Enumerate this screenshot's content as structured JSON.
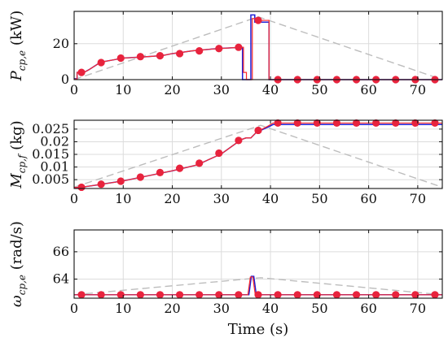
{
  "colors": {
    "background": "#ffffff",
    "grid": "#dcdcdc",
    "blue": "#1f1fd6",
    "red": "#ff2a2a",
    "dot": "#e8233d",
    "dashed": "#bdbdbd",
    "axis": "#111111"
  },
  "chart_data": [
    {
      "type": "line",
      "ylabel_main": "P",
      "ylabel_sub": "cp,e",
      "ylabel_unit": "(kW)",
      "xlim": [
        0,
        75
      ],
      "ylim": [
        0,
        38
      ],
      "xticks": [
        0,
        10,
        20,
        30,
        40,
        50,
        60,
        70
      ],
      "yticks": [
        0,
        20
      ],
      "grid": true,
      "series": [
        {
          "style": "dashed-gray",
          "points": [
            [
              0,
              0
            ],
            [
              37.5,
              35
            ],
            [
              75,
              0
            ]
          ]
        },
        {
          "style": "blue",
          "points": [
            [
              0,
              0.5
            ],
            [
              0.6,
              0.5
            ],
            [
              0.6,
              4
            ],
            [
              2,
              4
            ],
            [
              3,
              5.5
            ],
            [
              5,
              9
            ],
            [
              6,
              10
            ],
            [
              8,
              11
            ],
            [
              10,
              12
            ],
            [
              12,
              12.3
            ],
            [
              14,
              12.6
            ],
            [
              16,
              13
            ],
            [
              18,
              13.4
            ],
            [
              20,
              14.5
            ],
            [
              22,
              15.2
            ],
            [
              24,
              16
            ],
            [
              26,
              16.5
            ],
            [
              28,
              17
            ],
            [
              30,
              17.4
            ],
            [
              32,
              17.7
            ],
            [
              34,
              18
            ],
            [
              34.3,
              18
            ],
            [
              34.3,
              0
            ],
            [
              36,
              0
            ],
            [
              36,
              36
            ],
            [
              36.8,
              36
            ],
            [
              36.8,
              32
            ],
            [
              39.7,
              32
            ],
            [
              39.7,
              0
            ],
            [
              75,
              0
            ]
          ]
        },
        {
          "style": "red",
          "points": [
            [
              0,
              0.3
            ],
            [
              0.6,
              0.3
            ],
            [
              0.6,
              4
            ],
            [
              2,
              4
            ],
            [
              3,
              5.5
            ],
            [
              5,
              9
            ],
            [
              6,
              10
            ],
            [
              8,
              11
            ],
            [
              10,
              12
            ],
            [
              12,
              12.3
            ],
            [
              14,
              12.6
            ],
            [
              16,
              13
            ],
            [
              18,
              13.4
            ],
            [
              20,
              14.5
            ],
            [
              22,
              15.2
            ],
            [
              24,
              16
            ],
            [
              26,
              16.5
            ],
            [
              28,
              17
            ],
            [
              30,
              17.4
            ],
            [
              32,
              17.7
            ],
            [
              34,
              18
            ],
            [
              34.5,
              18
            ],
            [
              34.5,
              4
            ],
            [
              35.1,
              4
            ],
            [
              35.1,
              0
            ],
            [
              36.3,
              0
            ],
            [
              36.3,
              34
            ],
            [
              37,
              34
            ],
            [
              37,
              33
            ],
            [
              39.7,
              33
            ],
            [
              39.7,
              0
            ],
            [
              75,
              0
            ]
          ]
        },
        {
          "style": "dots",
          "points": [
            [
              1.5,
              4
            ],
            [
              5.5,
              9.5
            ],
            [
              9.5,
              12
            ],
            [
              13.5,
              12.8
            ],
            [
              17.5,
              13.3
            ],
            [
              21.5,
              14.5
            ],
            [
              25.5,
              16
            ],
            [
              29.5,
              17.3
            ],
            [
              33.5,
              18
            ],
            [
              37.5,
              33
            ],
            [
              41.5,
              0
            ],
            [
              45.5,
              0
            ],
            [
              49.5,
              0
            ],
            [
              53.5,
              0
            ],
            [
              57.5,
              0
            ],
            [
              61.5,
              0
            ],
            [
              65.5,
              0
            ],
            [
              69.5,
              0
            ],
            [
              73.5,
              0
            ]
          ]
        }
      ]
    },
    {
      "type": "line",
      "ylabel_main": "M",
      "ylabel_sub": "cp,f",
      "ylabel_unit": "(kg)",
      "xlim": [
        0,
        75
      ],
      "ylim": [
        0.0015,
        0.0285
      ],
      "xticks": [
        0,
        10,
        20,
        30,
        40,
        50,
        60,
        70
      ],
      "yticks": [
        0.005,
        0.01,
        0.015,
        0.02,
        0.025
      ],
      "ytick_labels": [
        "0.005",
        "0.01",
        "0.015",
        "0.02",
        "0.025"
      ],
      "grid": true,
      "series": [
        {
          "style": "dashed-gray",
          "points": [
            [
              0,
              0.002
            ],
            [
              38,
              0.0265
            ],
            [
              75,
              0.002
            ]
          ]
        },
        {
          "style": "blue",
          "points": [
            [
              0,
              0.0019
            ],
            [
              0.6,
              0.0019
            ],
            [
              1.5,
              0.002
            ],
            [
              5,
              0.003
            ],
            [
              10,
              0.0045
            ],
            [
              15,
              0.0065
            ],
            [
              20,
              0.0085
            ],
            [
              25,
              0.0108
            ],
            [
              30,
              0.0152
            ],
            [
              34,
              0.0208
            ],
            [
              35,
              0.0215
            ],
            [
              36,
              0.0215
            ],
            [
              37,
              0.0235
            ],
            [
              38,
              0.0245
            ],
            [
              39.5,
              0.0258
            ],
            [
              40.5,
              0.0268
            ],
            [
              75,
              0.0268
            ]
          ]
        },
        {
          "style": "red",
          "points": [
            [
              0,
              0.0019
            ],
            [
              0.6,
              0.0019
            ],
            [
              1.5,
              0.002
            ],
            [
              5,
              0.003
            ],
            [
              10,
              0.0045
            ],
            [
              15,
              0.0065
            ],
            [
              20,
              0.0085
            ],
            [
              25,
              0.0108
            ],
            [
              30,
              0.0152
            ],
            [
              34,
              0.0208
            ],
            [
              35,
              0.0215
            ],
            [
              36,
              0.0215
            ],
            [
              37,
              0.0235
            ],
            [
              38,
              0.0247
            ],
            [
              39.5,
              0.0262
            ],
            [
              40.5,
              0.0274
            ],
            [
              75,
              0.0274
            ]
          ]
        },
        {
          "style": "dots",
          "points": [
            [
              1.5,
              0.002
            ],
            [
              5.5,
              0.0032
            ],
            [
              9.5,
              0.0044
            ],
            [
              13.5,
              0.006
            ],
            [
              17.5,
              0.0078
            ],
            [
              21.5,
              0.0095
            ],
            [
              25.5,
              0.0115
            ],
            [
              29.5,
              0.0155
            ],
            [
              33.5,
              0.0205
            ],
            [
              37.5,
              0.0245
            ],
            [
              41.5,
              0.0274
            ],
            [
              45.5,
              0.0274
            ],
            [
              49.5,
              0.0274
            ],
            [
              53.5,
              0.0274
            ],
            [
              57.5,
              0.0274
            ],
            [
              61.5,
              0.0274
            ],
            [
              65.5,
              0.0274
            ],
            [
              69.5,
              0.0274
            ],
            [
              73.5,
              0.0274
            ]
          ]
        }
      ]
    },
    {
      "type": "line",
      "ylabel_main": "ω",
      "ylabel_sub": "cp,e",
      "ylabel_unit": "(rad/s)",
      "xlim": [
        0,
        75
      ],
      "ylim": [
        62.6,
        67.6
      ],
      "xticks": [
        0,
        10,
        20,
        30,
        40,
        50,
        60,
        70
      ],
      "yticks": [
        64,
        66
      ],
      "grid": true,
      "xlabel": "Time (s)",
      "series": [
        {
          "style": "dashed-gray",
          "points": [
            [
              0,
              62.85
            ],
            [
              38,
              64.1
            ],
            [
              75,
              62.85
            ]
          ]
        },
        {
          "style": "blue",
          "points": [
            [
              0,
              62.85
            ],
            [
              35.6,
              62.85
            ],
            [
              36.1,
              64.2
            ],
            [
              36.6,
              64.2
            ],
            [
              37.1,
              62.85
            ],
            [
              75,
              62.85
            ]
          ]
        },
        {
          "style": "red",
          "points": [
            [
              0,
              62.85
            ],
            [
              35.4,
              62.85
            ],
            [
              35.9,
              64.15
            ],
            [
              36.4,
              64.15
            ],
            [
              36.9,
              62.85
            ],
            [
              75,
              62.85
            ]
          ]
        },
        {
          "style": "dots",
          "points": [
            [
              1.5,
              62.85
            ],
            [
              5.5,
              62.85
            ],
            [
              9.5,
              62.85
            ],
            [
              13.5,
              62.85
            ],
            [
              17.5,
              62.85
            ],
            [
              21.5,
              62.85
            ],
            [
              25.5,
              62.85
            ],
            [
              29.5,
              62.85
            ],
            [
              33.5,
              62.85
            ],
            [
              37.5,
              62.85
            ],
            [
              41.5,
              62.85
            ],
            [
              45.5,
              62.85
            ],
            [
              49.5,
              62.85
            ],
            [
              53.5,
              62.85
            ],
            [
              57.5,
              62.85
            ],
            [
              61.5,
              62.85
            ],
            [
              65.5,
              62.85
            ],
            [
              69.5,
              62.85
            ],
            [
              73.5,
              62.85
            ]
          ]
        }
      ]
    }
  ]
}
